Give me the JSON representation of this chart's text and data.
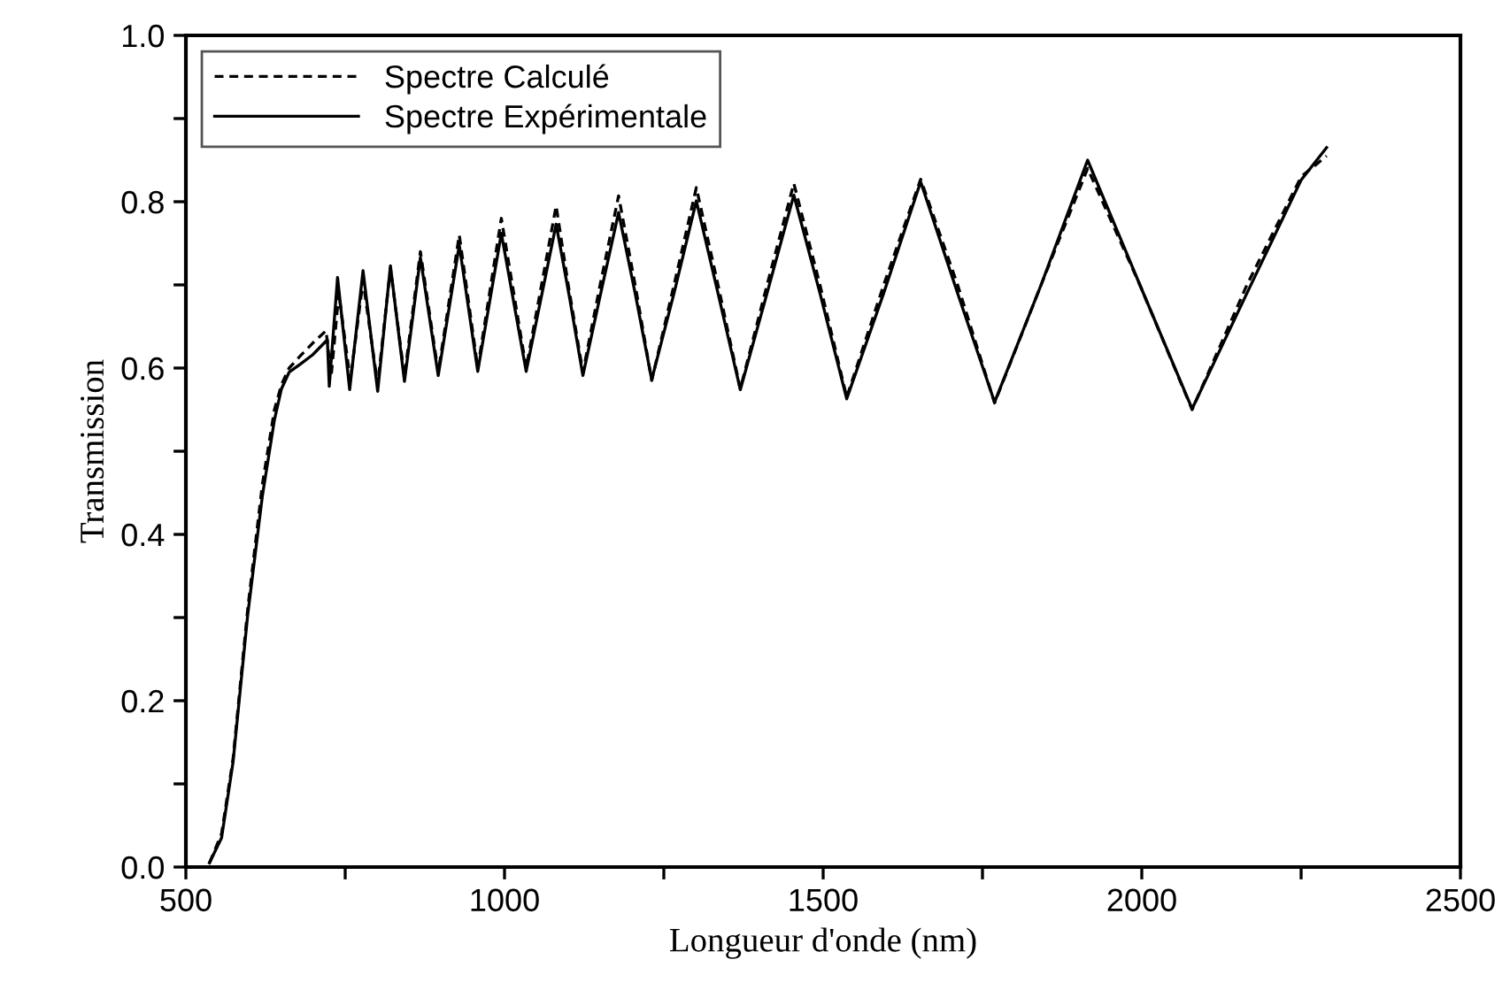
{
  "chart_data": {
    "type": "line",
    "xlabel": "Longueur d'onde (nm)",
    "ylabel": "Transmission",
    "xlim": [
      500,
      2500
    ],
    "ylim": [
      0,
      1
    ],
    "xticks": [
      500,
      {
        "value": 750,
        "label": null
      },
      1000,
      {
        "value": 1250,
        "label": null
      },
      1500,
      {
        "value": 1750,
        "label": null
      },
      2000,
      {
        "value": 2250,
        "label": null
      },
      2500
    ],
    "yticks": [
      {
        "value": 0,
        "label": "0.0"
      },
      {
        "value": 0.1,
        "label": null
      },
      0.2,
      {
        "value": 0.3,
        "label": null
      },
      0.4,
      {
        "value": 0.5,
        "label": null
      },
      0.6,
      {
        "value": 0.7,
        "label": null
      },
      0.8,
      {
        "value": 0.9,
        "label": null
      },
      {
        "value": 1,
        "label": "1.0"
      }
    ],
    "legend": "top left",
    "grid": false,
    "series": [
      {
        "name": "Spectre Calculé",
        "color": "#000000",
        "line_style": "dashed",
        "x": [
          537,
          556,
          574,
          597,
          620,
          639,
          650,
          662,
          680,
          699,
          720,
          728,
          740,
          758,
          778,
          801,
          821,
          843,
          868,
          896,
          929,
          958,
          995,
          1034,
          1081,
          1100,
          1123,
          1150,
          1179,
          1205,
          1231,
          1266,
          1301,
          1335,
          1370,
          1412,
          1454,
          1495,
          1537,
          1595,
          1653,
          1711,
          1769,
          1842,
          1915,
          1997,
          2079,
          2165,
          2250,
          2290
        ],
        "values": [
          0.005,
          0.04,
          0.13,
          0.31,
          0.46,
          0.55,
          0.58,
          0.6,
          0.615,
          0.63,
          0.645,
          0.59,
          0.69,
          0.585,
          0.705,
          0.58,
          0.72,
          0.59,
          0.74,
          0.595,
          0.76,
          0.6,
          0.78,
          0.6,
          0.795,
          0.7,
          0.595,
          0.7,
          0.807,
          0.7,
          0.585,
          0.7,
          0.817,
          0.7,
          0.575,
          0.7,
          0.822,
          0.7,
          0.565,
          0.7,
          0.827,
          0.7,
          0.558,
          0.7,
          0.84,
          0.7,
          0.55,
          0.7,
          0.83,
          0.855
        ]
      },
      {
        "name": "Spectre Expérimentale",
        "color": "#000000",
        "line_style": "solid",
        "x": [
          537,
          556,
          574,
          597,
          620,
          639,
          650,
          662,
          680,
          699,
          722,
          725,
          738,
          757,
          778,
          801,
          821,
          843,
          868,
          896,
          929,
          958,
          995,
          1034,
          1081,
          1102,
          1123,
          1151,
          1179,
          1205,
          1231,
          1266,
          1301,
          1335,
          1370,
          1412,
          1454,
          1495,
          1537,
          1595,
          1653,
          1711,
          1769,
          1842,
          1915,
          1997,
          2079,
          2165,
          2250,
          2290
        ],
        "values": [
          0.005,
          0.035,
          0.126,
          0.303,
          0.446,
          0.538,
          0.575,
          0.595,
          0.605,
          0.616,
          0.634,
          0.578,
          0.709,
          0.574,
          0.717,
          0.572,
          0.723,
          0.584,
          0.733,
          0.591,
          0.748,
          0.596,
          0.762,
          0.596,
          0.773,
          0.685,
          0.591,
          0.69,
          0.787,
          0.69,
          0.586,
          0.69,
          0.801,
          0.69,
          0.574,
          0.69,
          0.808,
          0.69,
          0.563,
          0.69,
          0.824,
          0.69,
          0.559,
          0.7,
          0.85,
          0.7,
          0.551,
          0.69,
          0.826,
          0.865
        ]
      }
    ]
  }
}
